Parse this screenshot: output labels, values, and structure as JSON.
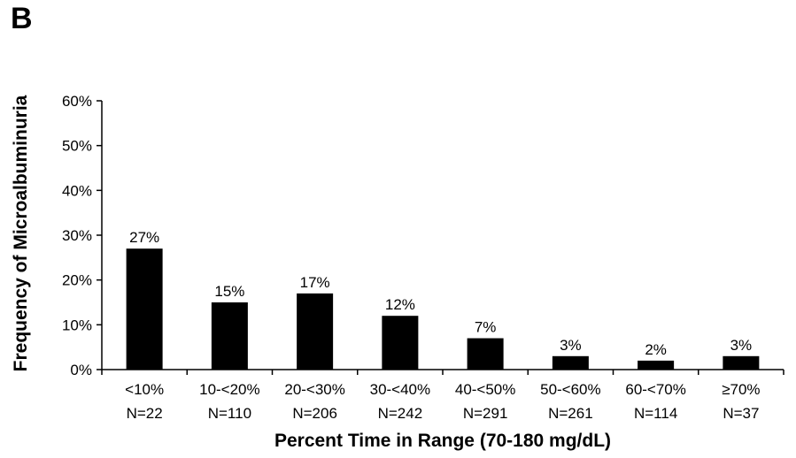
{
  "panel_label": "B",
  "chart_data": {
    "type": "bar",
    "categories": [
      "<10%",
      "10-<20%",
      "20-<30%",
      "30-<40%",
      "40-<50%",
      "50-<60%",
      "60-<70%",
      "≥70%"
    ],
    "category_counts": [
      "N=22",
      "N=110",
      "N=206",
      "N=242",
      "N=291",
      "N=261",
      "N=114",
      "N=37"
    ],
    "values": [
      27,
      15,
      17,
      12,
      7,
      3,
      2,
      3
    ],
    "data_labels": [
      "27%",
      "15%",
      "17%",
      "12%",
      "7%",
      "3%",
      "2%",
      "3%"
    ],
    "xlabel": "Percent Time in Range (70-180 mg/dL)",
    "ylabel": "Frequency of Microalbuminuria",
    "ylim": [
      0,
      60
    ],
    "yticks": [
      "0%",
      "10%",
      "20%",
      "30%",
      "40%",
      "50%",
      "60%"
    ],
    "bar_color": "#000000",
    "grid": false,
    "legend": "none"
  }
}
